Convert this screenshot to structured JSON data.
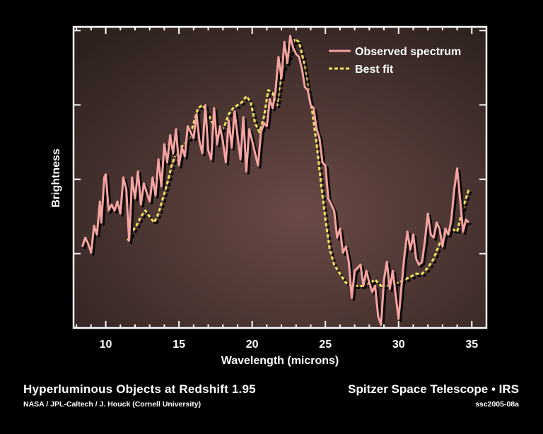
{
  "chart_data": {
    "type": "line",
    "xlabel": "Wavelength (microns)",
    "ylabel": "Brightness",
    "xlim": [
      7.8,
      36
    ],
    "ylim": [
      0,
      1
    ],
    "xticks": [
      10,
      15,
      20,
      25,
      30,
      35
    ],
    "x_minor_step": 1,
    "ytick_count": 4,
    "grid": false,
    "legend_position": "top-right",
    "colors": {
      "observed": "#f4a3a0",
      "fit": "#f0e060",
      "plot_bg_light": "#6a4a46",
      "plot_bg_dark": "#2e221f",
      "frame": "#ffffff"
    },
    "series": [
      {
        "name": "Observed spectrum",
        "style": "solid",
        "points": [
          [
            8.4,
            0.27
          ],
          [
            8.6,
            0.3
          ],
          [
            8.8,
            0.28
          ],
          [
            9.0,
            0.25
          ],
          [
            9.2,
            0.34
          ],
          [
            9.4,
            0.31
          ],
          [
            9.6,
            0.42
          ],
          [
            9.7,
            0.35
          ],
          [
            9.9,
            0.5
          ],
          [
            10.0,
            0.51
          ],
          [
            10.2,
            0.39
          ],
          [
            10.4,
            0.41
          ],
          [
            10.6,
            0.39
          ],
          [
            10.8,
            0.42
          ],
          [
            11.0,
            0.38
          ],
          [
            11.2,
            0.5
          ],
          [
            11.4,
            0.46
          ],
          [
            11.6,
            0.29
          ],
          [
            11.8,
            0.5
          ],
          [
            12.0,
            0.43
          ],
          [
            12.2,
            0.52
          ],
          [
            12.4,
            0.41
          ],
          [
            12.6,
            0.48
          ],
          [
            12.8,
            0.45
          ],
          [
            13.0,
            0.42
          ],
          [
            13.2,
            0.5
          ],
          [
            13.4,
            0.44
          ],
          [
            13.6,
            0.56
          ],
          [
            13.8,
            0.47
          ],
          [
            14.0,
            0.61
          ],
          [
            14.2,
            0.55
          ],
          [
            14.4,
            0.64
          ],
          [
            14.6,
            0.58
          ],
          [
            14.8,
            0.66
          ],
          [
            15.0,
            0.54
          ],
          [
            15.2,
            0.6
          ],
          [
            15.4,
            0.57
          ],
          [
            15.6,
            0.67
          ],
          [
            15.8,
            0.65
          ],
          [
            16.0,
            0.63
          ],
          [
            16.2,
            0.71
          ],
          [
            16.4,
            0.62
          ],
          [
            16.6,
            0.58
          ],
          [
            16.8,
            0.74
          ],
          [
            17.0,
            0.59
          ],
          [
            17.2,
            0.56
          ],
          [
            17.4,
            0.73
          ],
          [
            17.6,
            0.61
          ],
          [
            17.8,
            0.67
          ],
          [
            18.0,
            0.62
          ],
          [
            18.2,
            0.55
          ],
          [
            18.4,
            0.69
          ],
          [
            18.6,
            0.6
          ],
          [
            18.8,
            0.72
          ],
          [
            19.0,
            0.64
          ],
          [
            19.2,
            0.56
          ],
          [
            19.4,
            0.7
          ],
          [
            19.6,
            0.52
          ],
          [
            19.8,
            0.66
          ],
          [
            20.0,
            0.62
          ],
          [
            20.2,
            0.58
          ],
          [
            20.4,
            0.54
          ],
          [
            20.6,
            0.65
          ],
          [
            20.8,
            0.68
          ],
          [
            21.0,
            0.67
          ],
          [
            21.2,
            0.76
          ],
          [
            21.4,
            0.73
          ],
          [
            21.6,
            0.79
          ],
          [
            21.8,
            0.9
          ],
          [
            22.0,
            0.83
          ],
          [
            22.2,
            0.95
          ],
          [
            22.4,
            0.88
          ],
          [
            22.6,
            0.97
          ],
          [
            22.8,
            0.93
          ],
          [
            23.0,
            0.91
          ],
          [
            23.2,
            0.9
          ],
          [
            23.4,
            0.86
          ],
          [
            23.6,
            0.8
          ],
          [
            23.8,
            0.79
          ],
          [
            24.0,
            0.74
          ],
          [
            24.2,
            0.73
          ],
          [
            24.4,
            0.66
          ],
          [
            24.6,
            0.63
          ],
          [
            24.8,
            0.55
          ],
          [
            25.0,
            0.54
          ],
          [
            25.2,
            0.43
          ],
          [
            25.4,
            0.41
          ],
          [
            25.6,
            0.39
          ],
          [
            25.8,
            0.3
          ],
          [
            26.0,
            0.33
          ],
          [
            26.2,
            0.25
          ],
          [
            26.4,
            0.27
          ],
          [
            26.6,
            0.22
          ],
          [
            26.8,
            0.1
          ],
          [
            27.0,
            0.19
          ],
          [
            27.2,
            0.2
          ],
          [
            27.4,
            0.21
          ],
          [
            27.6,
            0.14
          ],
          [
            27.8,
            0.19
          ],
          [
            28.0,
            0.15
          ],
          [
            28.2,
            0.12
          ],
          [
            28.4,
            0.14
          ],
          [
            28.6,
            0.04
          ],
          [
            28.8,
            0.01
          ],
          [
            29.0,
            0.16
          ],
          [
            29.2,
            0.22
          ],
          [
            29.4,
            0.13
          ],
          [
            29.6,
            0.19
          ],
          [
            29.8,
            0.11
          ],
          [
            30.0,
            0.03
          ],
          [
            30.2,
            0.14
          ],
          [
            30.4,
            0.24
          ],
          [
            30.6,
            0.32
          ],
          [
            30.8,
            0.26
          ],
          [
            31.0,
            0.31
          ],
          [
            31.2,
            0.23
          ],
          [
            31.4,
            0.21
          ],
          [
            31.6,
            0.22
          ],
          [
            31.8,
            0.29
          ],
          [
            32.0,
            0.38
          ],
          [
            32.2,
            0.31
          ],
          [
            32.4,
            0.3
          ],
          [
            32.6,
            0.35
          ],
          [
            32.8,
            0.33
          ],
          [
            33.0,
            0.27
          ],
          [
            33.2,
            0.33
          ],
          [
            33.4,
            0.31
          ],
          [
            33.6,
            0.36
          ],
          [
            33.8,
            0.46
          ],
          [
            34.0,
            0.53
          ],
          [
            34.2,
            0.43
          ],
          [
            34.4,
            0.32
          ],
          [
            34.6,
            0.36
          ],
          [
            34.8,
            0.35
          ]
        ]
      },
      {
        "name": "Best fit",
        "style": "dashed",
        "points": [
          [
            11.5,
            0.29
          ],
          [
            11.8,
            0.32
          ],
          [
            12.1,
            0.34
          ],
          [
            12.4,
            0.37
          ],
          [
            12.7,
            0.39
          ],
          [
            13.0,
            0.37
          ],
          [
            13.3,
            0.35
          ],
          [
            13.6,
            0.38
          ],
          [
            13.9,
            0.43
          ],
          [
            14.2,
            0.48
          ],
          [
            14.5,
            0.54
          ],
          [
            14.8,
            0.58
          ],
          [
            15.1,
            0.6
          ],
          [
            15.4,
            0.61
          ],
          [
            15.7,
            0.63
          ],
          [
            16.0,
            0.68
          ],
          [
            16.3,
            0.73
          ],
          [
            16.6,
            0.74
          ],
          [
            16.9,
            0.72
          ],
          [
            17.2,
            0.69
          ],
          [
            17.5,
            0.66
          ],
          [
            17.8,
            0.65
          ],
          [
            18.1,
            0.67
          ],
          [
            18.4,
            0.71
          ],
          [
            18.7,
            0.73
          ],
          [
            19.0,
            0.74
          ],
          [
            19.3,
            0.75
          ],
          [
            19.6,
            0.77
          ],
          [
            19.9,
            0.75
          ],
          [
            20.2,
            0.68
          ],
          [
            20.5,
            0.65
          ],
          [
            20.8,
            0.7
          ],
          [
            21.1,
            0.79
          ],
          [
            21.4,
            0.78
          ],
          [
            21.7,
            0.74
          ],
          [
            22.0,
            0.85
          ],
          [
            22.3,
            0.88
          ],
          [
            22.6,
            0.91
          ],
          [
            22.9,
            0.96
          ],
          [
            23.2,
            0.95
          ],
          [
            23.5,
            0.89
          ],
          [
            23.8,
            0.8
          ],
          [
            24.1,
            0.72
          ],
          [
            24.4,
            0.61
          ],
          [
            24.7,
            0.48
          ],
          [
            25.0,
            0.36
          ],
          [
            25.3,
            0.26
          ],
          [
            25.6,
            0.21
          ],
          [
            26.0,
            0.18
          ],
          [
            26.4,
            0.15
          ],
          [
            26.8,
            0.14
          ],
          [
            27.2,
            0.14
          ],
          [
            27.6,
            0.14
          ],
          [
            28.0,
            0.15
          ],
          [
            28.4,
            0.16
          ],
          [
            28.8,
            0.14
          ],
          [
            29.2,
            0.14
          ],
          [
            29.6,
            0.15
          ],
          [
            30.0,
            0.15
          ],
          [
            30.4,
            0.16
          ],
          [
            30.8,
            0.17
          ],
          [
            31.2,
            0.18
          ],
          [
            31.6,
            0.18
          ],
          [
            32.0,
            0.2
          ],
          [
            32.4,
            0.23
          ],
          [
            32.8,
            0.28
          ],
          [
            33.2,
            0.31
          ],
          [
            33.6,
            0.33
          ],
          [
            34.0,
            0.32
          ],
          [
            34.4,
            0.4
          ],
          [
            34.8,
            0.46
          ]
        ]
      }
    ]
  },
  "footer": {
    "title": "Hyperluminous Objects at Redshift 1.95",
    "credit": "NASA / JPL-Caltech / J. Houck (Cornell University)",
    "mission": "Spitzer Space Telescope • IRS",
    "id": "ssc2005-08a"
  }
}
